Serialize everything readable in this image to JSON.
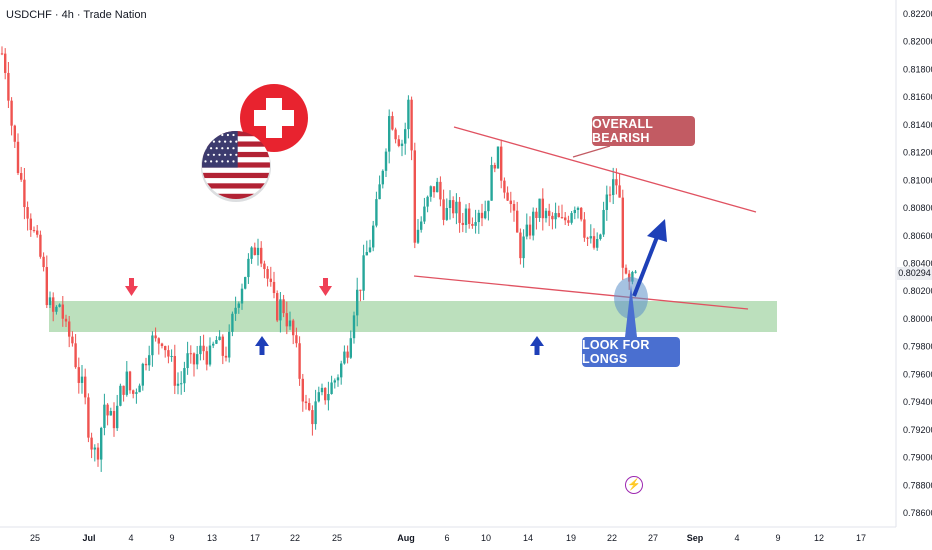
{
  "header": {
    "symbol": "USDCHF · 4h · Trade Nation"
  },
  "annotations": {
    "overall_bearish": "OVERALL BEARISH",
    "look_for_longs": "LOOK FOR LONGS",
    "current_price": "0.80294"
  },
  "colors": {
    "bullish_candle": "#26a69a",
    "bearish_candle": "#ef5350",
    "trendline": "#e05261",
    "support_zone": "#a5d6a7",
    "bearish_label": "#c25b63",
    "longs_label": "#4a6fd0",
    "arrow_up": "#1e3fb8",
    "arrow_down": "#ef4056"
  },
  "icons": [
    "usa-flag-icon",
    "switzerland-flag-icon",
    "red-down-arrow-icon",
    "blue-up-arrow-icon",
    "lightning-icon"
  ],
  "chart_data": {
    "type": "candlestick",
    "title": "USDCHF · 4h · Trade Nation",
    "ylim": [
      0.785,
      0.823
    ],
    "y_ticks": [
      "0.82200",
      "0.82000",
      "0.81800",
      "0.81600",
      "0.81400",
      "0.81200",
      "0.81000",
      "0.80800",
      "0.80600",
      "0.80400",
      "0.80200",
      "0.80000",
      "0.79800",
      "0.79600",
      "0.79400",
      "0.79200",
      "0.79000",
      "0.78800",
      "0.78600"
    ],
    "x_ticks": [
      "25",
      "Jul",
      "4",
      "9",
      "13",
      "17",
      "22",
      "25",
      "Aug",
      "6",
      "10",
      "14",
      "19",
      "22",
      "27",
      "Sep",
      "4",
      "9",
      "12",
      "17"
    ],
    "path": [
      [
        0,
        0.8195
      ],
      [
        4,
        0.8188
      ],
      [
        8,
        0.8168
      ],
      [
        12,
        0.8138
      ],
      [
        18,
        0.811
      ],
      [
        24,
        0.809
      ],
      [
        30,
        0.8072
      ],
      [
        36,
        0.8055
      ],
      [
        42,
        0.804
      ],
      [
        48,
        0.8012
      ],
      [
        54,
        0.8002
      ],
      [
        60,
        0.8012
      ],
      [
        66,
        0.799
      ],
      [
        72,
        0.7985
      ],
      [
        78,
        0.796
      ],
      [
        84,
        0.7945
      ],
      [
        90,
        0.7915
      ],
      [
        96,
        0.79
      ],
      [
        100,
        0.7915
      ],
      [
        104,
        0.794
      ],
      [
        108,
        0.793
      ],
      [
        112,
        0.7925
      ],
      [
        116,
        0.793
      ],
      [
        120,
        0.7945
      ],
      [
        126,
        0.7958
      ],
      [
        132,
        0.7944
      ],
      [
        138,
        0.7955
      ],
      [
        144,
        0.7968
      ],
      [
        150,
        0.7985
      ],
      [
        156,
        0.7982
      ],
      [
        162,
        0.7988
      ],
      [
        168,
        0.7975
      ],
      [
        174,
        0.796
      ],
      [
        180,
        0.795
      ],
      [
        186,
        0.7972
      ],
      [
        192,
        0.7965
      ],
      [
        198,
        0.7975
      ],
      [
        204,
        0.7978
      ],
      [
        210,
        0.7972
      ],
      [
        216,
        0.7985
      ],
      [
        222,
        0.7975
      ],
      [
        228,
        0.7978
      ],
      [
        234,
        0.8005
      ],
      [
        240,
        0.8022
      ],
      [
        246,
        0.8035
      ],
      [
        252,
        0.8045
      ],
      [
        258,
        0.8058
      ],
      [
        264,
        0.804
      ],
      [
        270,
        0.8022
      ],
      [
        276,
        0.8005
      ],
      [
        282,
        0.8012
      ],
      [
        288,
        0.7998
      ],
      [
        294,
        0.7985
      ],
      [
        300,
        0.7958
      ],
      [
        306,
        0.7935
      ],
      [
        312,
        0.793
      ],
      [
        318,
        0.794
      ],
      [
        324,
        0.7945
      ],
      [
        330,
        0.795
      ],
      [
        336,
        0.7958
      ],
      [
        342,
        0.7968
      ],
      [
        348,
        0.7982
      ],
      [
        354,
        0.801
      ],
      [
        360,
        0.8025
      ],
      [
        366,
        0.8045
      ],
      [
        372,
        0.806
      ],
      [
        378,
        0.8085
      ],
      [
        384,
        0.8118
      ],
      [
        390,
        0.815
      ],
      [
        396,
        0.8135
      ],
      [
        402,
        0.8128
      ],
      [
        406,
        0.814
      ],
      [
        410,
        0.8165
      ],
      [
        414,
        0.8058
      ],
      [
        418,
        0.8065
      ],
      [
        424,
        0.8075
      ],
      [
        430,
        0.809
      ],
      [
        436,
        0.8098
      ],
      [
        442,
        0.8082
      ],
      [
        448,
        0.8075
      ],
      [
        454,
        0.8082
      ],
      [
        460,
        0.807
      ],
      [
        466,
        0.8078
      ],
      [
        472,
        0.8074
      ],
      [
        478,
        0.8082
      ],
      [
        484,
        0.8075
      ],
      [
        490,
        0.8098
      ],
      [
        496,
        0.8122
      ],
      [
        502,
        0.8102
      ],
      [
        508,
        0.8092
      ],
      [
        514,
        0.807
      ],
      [
        520,
        0.805
      ],
      [
        526,
        0.8058
      ],
      [
        532,
        0.807
      ],
      [
        538,
        0.808
      ],
      [
        544,
        0.8075
      ],
      [
        550,
        0.807
      ],
      [
        556,
        0.8072
      ],
      [
        562,
        0.8068
      ],
      [
        568,
        0.8075
      ],
      [
        574,
        0.8085
      ],
      [
        580,
        0.8082
      ],
      [
        586,
        0.806
      ],
      [
        592,
        0.8052
      ],
      [
        598,
        0.805
      ],
      [
        604,
        0.8078
      ],
      [
        610,
        0.8092
      ],
      [
        616,
        0.81
      ],
      [
        620,
        0.8082
      ],
      [
        624,
        0.8028
      ],
      [
        628,
        0.802
      ],
      [
        632,
        0.8026
      ],
      [
        636,
        0.8029
      ]
    ]
  }
}
